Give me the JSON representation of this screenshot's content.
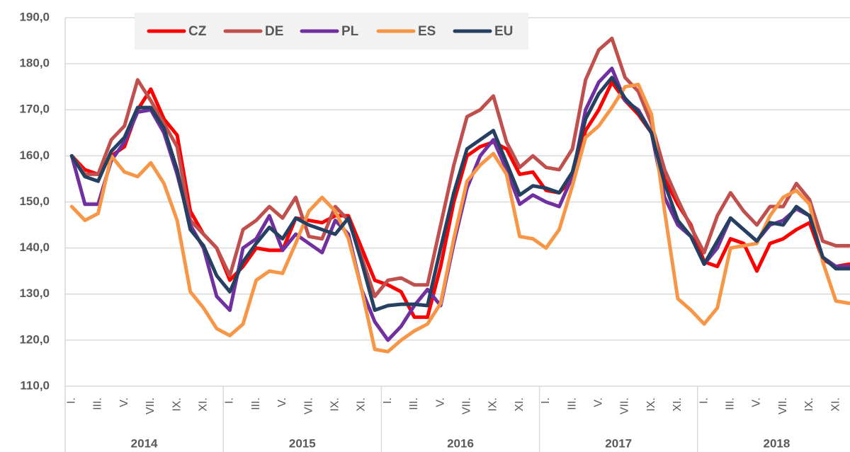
{
  "chart_data": {
    "type": "line",
    "categories": [
      "I.",
      null,
      "III.",
      null,
      "V.",
      null,
      "VII.",
      null,
      "IX.",
      null,
      "XI.",
      null,
      "I.",
      null,
      "III.",
      null,
      "V.",
      null,
      "VII.",
      null,
      "IX.",
      null,
      "XI.",
      null,
      "I.",
      null,
      "III.",
      null,
      "V.",
      null,
      "VII.",
      null,
      "IX.",
      null,
      "XI.",
      null,
      "I.",
      null,
      "III.",
      null,
      "V.",
      null,
      "VII.",
      null,
      "IX.",
      null,
      "XI.",
      null,
      "I.",
      null,
      "III.",
      null,
      "V.",
      null,
      "VII.",
      null,
      "IX.",
      null,
      "XI.",
      null
    ],
    "years": [
      "2014",
      "2015",
      "2016",
      "2017",
      "2018"
    ],
    "series": [
      {
        "name": "CZ",
        "color": "#ff0000",
        "values": [
          160,
          157,
          156,
          160,
          162,
          170,
          174.5,
          168,
          164.5,
          148,
          143,
          140,
          133,
          136,
          140,
          139.5,
          139.5,
          146.5,
          146,
          145.5,
          147,
          147,
          140,
          133,
          132,
          130.5,
          125,
          125,
          136,
          150,
          160,
          162,
          163,
          161.5,
          156,
          156.5,
          152.5,
          152,
          155,
          165.5,
          170,
          176,
          172,
          169,
          165,
          155,
          149.5,
          145,
          137,
          136,
          142,
          141,
          135,
          141,
          142,
          144,
          145.5,
          137.5,
          136,
          136.5
        ]
      },
      {
        "name": "DE",
        "color": "#c0504d",
        "values": [
          160,
          156,
          156,
          163.5,
          166.5,
          176.5,
          172,
          167,
          162,
          146,
          143,
          140,
          134,
          144,
          146,
          149,
          146.5,
          151,
          142.5,
          142,
          149,
          146,
          138,
          129.5,
          133,
          133.5,
          132,
          132,
          145,
          158,
          168.5,
          170,
          173,
          163,
          157.5,
          160,
          157.5,
          157,
          161.5,
          176.5,
          183,
          185.5,
          177,
          174,
          167,
          157,
          150.5,
          144.5,
          139,
          147,
          152,
          148,
          145,
          149,
          149,
          154,
          150.5,
          141.5,
          140.5,
          140.5
        ]
      },
      {
        "name": "PL",
        "color": "#7030a0",
        "values": [
          160,
          149.5,
          149.5,
          159,
          163,
          169.5,
          170,
          165,
          156,
          145,
          140,
          129.5,
          126.5,
          140,
          142,
          147,
          139.5,
          143,
          141,
          139,
          146,
          143,
          131,
          124,
          120,
          123,
          127.5,
          131,
          127.5,
          141,
          153,
          160,
          163.5,
          157,
          149.5,
          151.5,
          150,
          149,
          155.5,
          170,
          176,
          179,
          172,
          170,
          165,
          151,
          145,
          142.5,
          136.5,
          140,
          146.5,
          144,
          141.5,
          145,
          146,
          148.5,
          147,
          138,
          136,
          136
        ]
      },
      {
        "name": "ES",
        "color": "#f79646",
        "values": [
          149,
          146,
          147.5,
          160,
          156.5,
          155.5,
          158.5,
          154,
          146,
          130.5,
          127,
          122.5,
          121,
          123.5,
          133,
          135,
          134.5,
          141,
          148,
          151,
          148,
          142,
          131,
          118,
          117.5,
          120,
          122,
          123.5,
          128,
          142,
          154.5,
          158,
          160.5,
          156,
          142.5,
          142,
          140,
          144,
          153.5,
          164,
          166.5,
          170.5,
          175,
          175.5,
          169,
          148,
          129,
          126.5,
          123.5,
          127,
          140,
          140.5,
          141,
          147,
          151,
          152.5,
          149.5,
          137,
          128.5,
          128
        ]
      },
      {
        "name": "EU",
        "color": "#254061",
        "values": [
          160,
          155.5,
          154.5,
          161,
          164,
          170.5,
          170.5,
          166,
          157,
          144,
          140.5,
          134,
          130.5,
          137,
          141,
          144.5,
          142,
          146.5,
          145,
          144,
          143,
          146.5,
          137,
          126.5,
          127.5,
          127.8,
          127.8,
          127.5,
          140,
          152,
          161.5,
          163.5,
          165.5,
          158.5,
          151.5,
          153.5,
          153,
          152,
          156.5,
          168,
          173.5,
          177,
          172.5,
          169.5,
          165,
          154,
          146,
          142.5,
          136.5,
          141.5,
          146.5,
          144,
          141.5,
          145.5,
          145,
          149,
          147,
          138,
          135.5,
          135.5
        ]
      }
    ],
    "ylim": [
      110,
      190
    ],
    "yticks": [
      {
        "value": 110,
        "label": "110,0"
      },
      {
        "value": 120,
        "label": "120,0"
      },
      {
        "value": 130,
        "label": "130,0"
      },
      {
        "value": 140,
        "label": "140,0"
      },
      {
        "value": 150,
        "label": "150,0"
      },
      {
        "value": 160,
        "label": "160,0"
      },
      {
        "value": 170,
        "label": "170,0"
      },
      {
        "value": 180,
        "label": "180,0"
      },
      {
        "value": 190,
        "label": "190,0"
      }
    ],
    "grid": true
  }
}
